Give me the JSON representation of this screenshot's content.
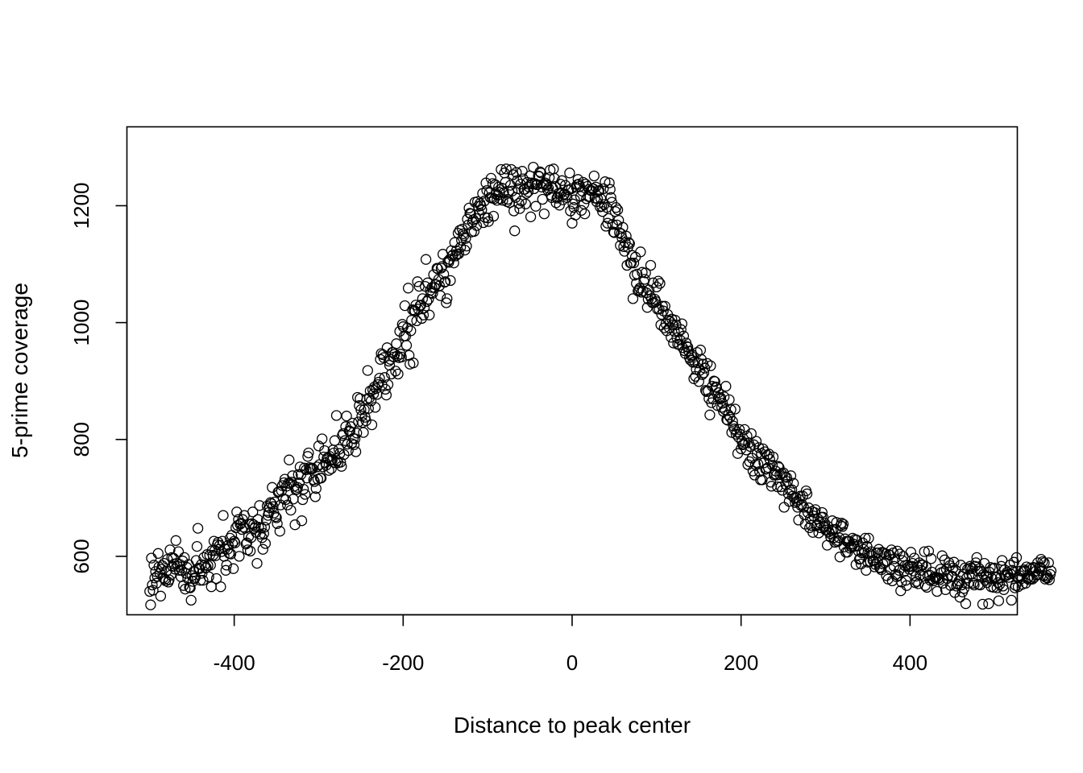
{
  "chart_data": {
    "type": "scatter",
    "title": "",
    "xlabel": "Distance to peak center",
    "ylabel": "5-prime coverage",
    "xlim": [
      -527,
      527
    ],
    "ylim": [
      500,
      1335
    ],
    "x_ticks": [
      -400,
      -200,
      0,
      200,
      400
    ],
    "x_tick_labels": [
      "-400",
      "-200",
      "0",
      "200",
      "400"
    ],
    "y_ticks": [
      600,
      800,
      1000,
      1200
    ],
    "y_tick_labels": [
      "600",
      "800",
      "1000",
      "1200"
    ],
    "grid": false,
    "legend": "none",
    "marker": "open-circle",
    "marker_color": "#000000",
    "x_range": [
      -500,
      500
    ],
    "x_step": 1,
    "y": [
      540,
      517,
      597,
      551,
      542,
      585,
      563,
      574,
      554,
      566,
      605,
      582,
      571,
      532,
      578,
      584,
      563,
      588,
      561,
      558,
      575,
      595,
      556,
      560,
      611,
      568,
      598,
      583,
      597,
      587,
      578,
      627,
      588,
      583,
      608,
      576,
      586,
      565,
      576,
      592,
      550,
      598,
      544,
      571,
      581,
      562,
      586,
      547,
      546,
      525,
      567,
      557,
      574,
      562,
      564,
      593,
      617,
      648,
      580,
      579,
      559,
      586,
      571,
      559,
      598,
      585,
      580,
      581,
      603,
      584,
      565,
      602,
      585,
      548,
      610,
      602,
      626,
      610,
      601,
      562,
      620,
      624,
      612,
      619,
      548,
      608,
      626,
      670,
      600,
      613,
      576,
      585,
      612,
      619,
      605,
      631,
      604,
      636,
      622,
      579,
      626,
      623,
      649,
      676,
      653,
      663,
      600,
      655,
      657,
      646,
      663,
      650,
      670,
      648,
      621,
      623,
      611,
      634,
      655,
      609,
      632,
      656,
      676,
      654,
      648,
      651,
      641,
      588,
      663,
      650,
      687,
      638,
      649,
      632,
      612,
      639,
      650,
      622,
      662,
      686,
      670,
      675,
      683,
      692,
      690,
      718,
      685,
      674,
      693,
      668,
      666,
      656,
      710,
      711,
      643,
      688,
      712,
      721,
      699,
      726,
      732,
      697,
      720,
      688,
      725,
      765,
      725,
      679,
      727,
      738,
      698,
      720,
      654,
      714,
      715,
      718,
      740,
      726,
      753,
      740,
      661,
      697,
      715,
      751,
      706,
      748,
      734,
      771,
      777,
      752,
      750,
      749,
      751,
      750,
      731,
      728,
      702,
      716,
      753,
      732,
      789,
      757,
      734,
      734,
      801,
      753,
      770,
      781,
      760,
      756,
      768,
      769,
      747,
      771,
      765,
      750,
      765,
      782,
      777,
      798,
      760,
      841,
      764,
      760,
      783,
      776,
      761,
      754,
      807,
      810,
      774,
      798,
      822,
      840,
      792,
      781,
      815,
      814,
      822,
      793,
      828,
      802,
      791,
      801,
      779,
      811,
      872,
      830,
      858,
      870,
      851,
      840,
      829,
      812,
      851,
      838,
      832,
      869,
      918,
      853,
      871,
      883,
      866,
      825,
      885,
      878,
      890,
      855,
      887,
      877,
      894,
      898,
      905,
      937,
      947,
      893,
      945,
      940,
      906,
      886,
      876,
      957,
      894,
      934,
      927,
      937,
      912,
      949,
      949,
      941,
      946,
      917,
      964,
      943,
      912,
      940,
      985,
      946,
      941,
      997,
      993,
      977,
      1029,
      977,
      961,
      991,
      1059,
      944,
      929,
      986,
      1004,
      1022,
      931,
      1021,
      1020,
      1030,
      1003,
      1070,
      1023,
      1062,
      1029,
      1030,
      1007,
      1041,
      1013,
      1025,
      1062,
      1108,
      1036,
      1068,
      1040,
      1013,
      1055,
      1051,
      1060,
      1050,
      1082,
      1060,
      1065,
      1065,
      1093,
      1092,
      1074,
      1063,
      1046,
      1093,
      1096,
      1117,
      1083,
      1069,
      1070,
      1034,
      1041,
      1105,
      1103,
      1108,
      1072,
      1123,
      1114,
      1116,
      1102,
      1137,
      1114,
      1123,
      1117,
      1153,
      1118,
      1158,
      1129,
      1141,
      1160,
      1152,
      1149,
      1124,
      1144,
      1131,
      1177,
      1167,
      1196,
      1187,
      1186,
      1155,
      1172,
      1176,
      1156,
      1206,
      1178,
      1166,
      1207,
      1199,
      1186,
      1204,
      1200,
      1193,
      1221,
      1171,
      1208,
      1180,
      1239,
      1226,
      1179,
      1173,
      1222,
      1214,
      1247,
      1213,
      1238,
      1182,
      1212,
      1236,
      1220,
      1209,
      1218,
      1232,
      1223,
      1212,
      1262,
      1230,
      1209,
      1222,
      1256,
      1240,
      1263,
      1207,
      1211,
      1224,
      1205,
      1235,
      1262,
      1225,
      1253,
      1191,
      1157,
      1214,
      1257,
      1243,
      1229,
      1204,
      1195,
      1237,
      1208,
      1259,
      1246,
      1228,
      1228,
      1203,
      1221,
      1240,
      1224,
      1232,
      1251,
      1181,
      1239,
      1237,
      1266,
      1229,
      1238,
      1199,
      1236,
      1236,
      1251,
      1250,
      1258,
      1256,
      1232,
      1211,
      1237,
      1186,
      1239,
      1236,
      1235,
      1227,
      1230,
      1248,
      1261,
      1218,
      1214,
      1230,
      1263,
      1247,
      1233,
      1205,
      1213,
      1215,
      1221,
      1201,
      1237,
      1222,
      1243,
      1210,
      1219,
      1220,
      1235,
      1218,
      1214,
      1227,
      1227,
      1256,
      1191,
      1229,
      1170,
      1203,
      1197,
      1210,
      1184,
      1232,
      1236,
      1245,
      1237,
      1233,
      1216,
      1192,
      1225,
      1240,
      1203,
      1186,
      1237,
      1212,
      1233,
      1216,
      1228,
      1215,
      1226,
      1226,
      1229,
      1229,
      1251,
      1213,
      1232,
      1207,
      1212,
      1225,
      1226,
      1198,
      1212,
      1199,
      1190,
      1229,
      1202,
      1241,
      1165,
      1197,
      1170,
      1178,
      1239,
      1228,
      1214,
      1206,
      1168,
      1155,
      1154,
      1190,
      1197,
      1167,
      1193,
      1175,
      1154,
      1132,
      1152,
      1145,
      1163,
      1130,
      1122,
      1137,
      1148,
      1098,
      1129,
      1137,
      1135,
      1102,
      1102,
      1115,
      1041,
      1102,
      1081,
      1112,
      1067,
      1083,
      1054,
      1056,
      1059,
      1121,
      1052,
      1086,
      1054,
      1070,
      1074,
      1085,
      1051,
      1026,
      1040,
      1056,
      1046,
      1098,
      1041,
      1034,
      1068,
      1034,
      1040,
      1036,
      1061,
      1023,
      1071,
      1023,
      1067,
      996,
      1014,
      1028,
      1020,
      991,
      1028,
      998,
      986,
      1014,
      1004,
      991,
      1002,
      975,
      1006,
      996,
      965,
      985,
      1004,
      996,
      974,
      963,
      984,
      962,
      970,
      988,
      998,
      957,
      977,
      952,
      947,
      965,
      959,
      958,
      951,
      940,
      936,
      943,
      945,
      932,
      904,
      933,
      908,
      920,
      949,
      931,
      899,
      918,
      953,
      937,
      911,
      929,
      914,
      922,
      884,
      882,
      930,
      883,
      870,
      842,
      926,
      863,
      891,
      869,
      900,
      899,
      890,
      889,
      858,
      880,
      872,
      869,
      871,
      855,
      862,
      848,
      873,
      851,
      891,
      834,
      833,
      842,
      868,
      838,
      851,
      812,
      831,
      823,
      818,
      852,
      809,
      813,
      776,
      804,
      817,
      809,
      784,
      797,
      791,
      792,
      817,
      794,
      782,
      806,
      757,
      794,
      762,
      788,
      810,
      768,
      746,
      791,
      739,
      757,
      797,
      776,
      758,
      786,
      745,
      731,
      776,
      731,
      784,
      760,
      779,
      749,
      750,
      773,
      752,
      775,
      766,
      727,
      720,
      756,
      770,
      739,
      741,
      746,
      739,
      719,
      754,
      752,
      740,
      719,
      742,
      713,
      743,
      684,
      736,
      723,
      735,
      728,
      707,
      694,
      713,
      738,
      714,
      703,
      725,
      700,
      692,
      701,
      694,
      684,
      662,
      697,
      703,
      687,
      689,
      703,
      684,
      671,
      655,
      712,
      707,
      675,
      683,
      649,
      664,
      653,
      677,
      641,
      669,
      675,
      680,
      652,
      654,
      664,
      640,
      658,
      649,
      667,
      675,
      667,
      650,
      657,
      645,
      645,
      619,
      651,
      642,
      639,
      633,
      644,
      661,
      646,
      632,
      624,
      646,
      658,
      625,
      627,
      632,
      599,
      653,
      657,
      651,
      655,
      616,
      630,
      607,
      626,
      607,
      626,
      626,
      614,
      617,
      616,
      631,
      621,
      617,
      629,
      586,
      628,
      618,
      609,
      595,
      596,
      587,
      606,
      623,
      612,
      606,
      631,
      576,
      617,
      590,
      631,
      605,
      591,
      608,
      601,
      593,
      593,
      582,
      586,
      606,
      590,
      606,
      612,
      581,
      580,
      577,
      607,
      587,
      606,
      589,
      604,
      567,
      592,
      561,
      603,
      602,
      578,
      611,
      558,
      606,
      583,
      596,
      569,
      565,
      609,
      567,
      576,
      604,
      541,
      556,
      593,
      600,
      574,
      584,
      559,
      550,
      585,
      582,
      578,
      583,
      607,
      583,
      588,
      575,
      597,
      555,
      566,
      557,
      582,
      553,
      589,
      568,
      576,
      586,
      585,
      566,
      608,
      550,
      582,
      547,
      567,
      609,
      568,
      559,
      596,
      573,
      561,
      558,
      565,
      562,
      564,
      540,
      562,
      563,
      560,
      578,
      572,
      601,
      554,
      574,
      594,
      543,
      578,
      562,
      567,
      589,
      584,
      550,
      565,
      566,
      580,
      590,
      538,
      576,
      549,
      553,
      552,
      558,
      530,
      585,
      551,
      539,
      569,
      545,
      580,
      519,
      563,
      578,
      554,
      568,
      583,
      580,
      570,
      579,
      554,
      551,
      583,
      589,
      598,
      575,
      552,
      579,
      551,
      575,
      564,
      518,
      569,
      588,
      559,
      566,
      555,
      564,
      519,
      573,
      581,
      548,
      562,
      579,
      547,
      580,
      564,
      565,
      546,
      555,
      524,
      552,
      563,
      583,
      593,
      549,
      543,
      577,
      567,
      567,
      573,
      569,
      564,
      585,
      570,
      525,
      576,
      573,
      590,
      546,
      550,
      598,
      564,
      548,
      563,
      567,
      575,
      562,
      552,
      574,
      577,
      575,
      554,
      582,
      562,
      564,
      560,
      580,
      562,
      578,
      561,
      581,
      564,
      580,
      575,
      568,
      589,
      569,
      582,
      580,
      595,
      575,
      591,
      567,
      589,
      561,
      564,
      567,
      563,
      589,
      560,
      569,
      575
    ]
  }
}
